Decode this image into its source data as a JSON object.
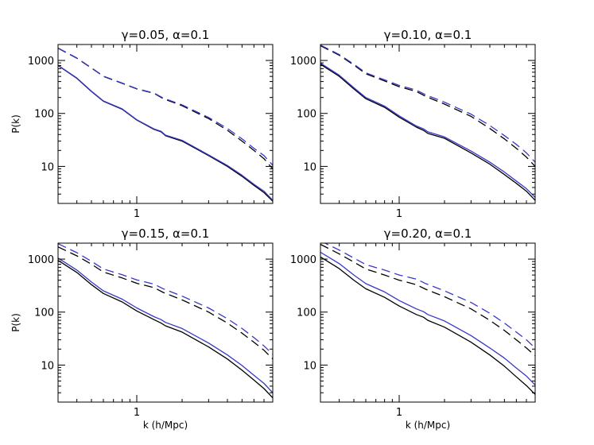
{
  "figure": {
    "x_axis_label": "k (h/Mpc)",
    "y_axis_label": "P(k)"
  },
  "colors": {
    "black": "#000000",
    "blue": "#3838c8"
  },
  "chart_data": [
    {
      "type": "line",
      "title": "γ=0.05, α=0.1",
      "xlabel": "",
      "ylabel": "P(k)",
      "xscale": "log",
      "yscale": "log",
      "xlim": [
        0.3,
        8.0
      ],
      "ylim": [
        2,
        2000
      ],
      "xticklabels": [
        "1"
      ],
      "yticklabels": [
        "10",
        "100",
        "1000"
      ],
      "series": [
        {
          "style": "solid",
          "color": "black",
          "x": [
            0.3,
            0.4,
            0.5,
            0.6,
            0.8,
            1.0,
            1.3,
            1.45,
            1.55,
            2.0,
            3.0,
            4.0,
            5.0,
            6.0,
            7.0,
            8.0
          ],
          "y": [
            800,
            460,
            260,
            170,
            120,
            75,
            50,
            45,
            38,
            30,
            16,
            10,
            6.5,
            4.4,
            3.2,
            2.2
          ]
        },
        {
          "style": "solid",
          "color": "blue",
          "x": [
            0.3,
            0.4,
            0.5,
            0.6,
            0.8,
            1.0,
            1.3,
            1.45,
            1.55,
            2.0,
            3.0,
            4.0,
            5.0,
            6.0,
            7.0,
            8.0
          ],
          "y": [
            810,
            465,
            263,
            172,
            122,
            76,
            51,
            46,
            39,
            31,
            16.5,
            10.4,
            6.8,
            4.6,
            3.4,
            2.3
          ]
        },
        {
          "style": "dashed",
          "color": "black",
          "x": [
            0.3,
            0.4,
            0.5,
            0.6,
            0.8,
            1.0,
            1.3,
            1.5,
            2.0,
            3.0,
            4.0,
            5.0,
            6.0,
            7.0,
            8.0
          ],
          "y": [
            1700,
            1100,
            720,
            500,
            370,
            290,
            240,
            190,
            140,
            80,
            48,
            30,
            20,
            14,
            9
          ]
        },
        {
          "style": "dashed",
          "color": "blue",
          "x": [
            0.3,
            0.4,
            0.5,
            0.6,
            0.8,
            1.0,
            1.3,
            1.5,
            2.0,
            3.0,
            4.0,
            5.0,
            6.0,
            7.0,
            8.0
          ],
          "y": [
            1720,
            1110,
            728,
            505,
            375,
            293,
            243,
            195,
            145,
            84,
            52,
            33,
            22,
            16,
            10.5
          ]
        }
      ]
    },
    {
      "type": "line",
      "title": "γ=0.10, α=0.1",
      "xlabel": "",
      "ylabel": "",
      "xscale": "log",
      "yscale": "log",
      "xlim": [
        0.3,
        8.0
      ],
      "ylim": [
        2,
        2000
      ],
      "xticklabels": [
        "1"
      ],
      "yticklabels": [
        "10",
        "100",
        "1000"
      ],
      "series": [
        {
          "style": "solid",
          "color": "black",
          "x": [
            0.3,
            0.4,
            0.5,
            0.6,
            0.8,
            1.0,
            1.3,
            1.45,
            1.55,
            2.0,
            3.0,
            4.0,
            5.0,
            6.0,
            7.0,
            8.0
          ],
          "y": [
            850,
            500,
            290,
            190,
            130,
            85,
            55,
            48,
            42,
            34,
            18,
            11,
            7,
            4.8,
            3.4,
            2.3
          ]
        },
        {
          "style": "solid",
          "color": "blue",
          "x": [
            0.3,
            0.4,
            0.5,
            0.6,
            0.8,
            1.0,
            1.3,
            1.45,
            1.55,
            2.0,
            3.0,
            4.0,
            5.0,
            6.0,
            7.0,
            8.0
          ],
          "y": [
            890,
            525,
            305,
            200,
            137,
            90,
            58,
            51,
            45,
            36,
            19.5,
            12,
            7.8,
            5.3,
            3.8,
            2.6
          ]
        },
        {
          "style": "dashed",
          "color": "black",
          "x": [
            0.3,
            0.4,
            0.5,
            0.6,
            0.8,
            1.0,
            1.3,
            1.5,
            2.0,
            3.0,
            4.0,
            5.0,
            6.0,
            7.0,
            8.0
          ],
          "y": [
            1900,
            1250,
            820,
            560,
            410,
            320,
            260,
            210,
            150,
            88,
            52,
            33,
            22,
            15,
            10
          ]
        },
        {
          "style": "dashed",
          "color": "blue",
          "x": [
            0.3,
            0.4,
            0.5,
            0.6,
            0.8,
            1.0,
            1.3,
            1.5,
            2.0,
            3.0,
            4.0,
            5.0,
            6.0,
            7.0,
            8.0
          ],
          "y": [
            1950,
            1290,
            850,
            585,
            430,
            338,
            275,
            225,
            163,
            97,
            59,
            38,
            26,
            18,
            12
          ]
        }
      ]
    },
    {
      "type": "line",
      "title": "γ=0.15, α=0.1",
      "xlabel": "k (h/Mpc)",
      "ylabel": "P(k)",
      "xscale": "log",
      "yscale": "log",
      "xlim": [
        0.3,
        8.0
      ],
      "ylim": [
        2,
        2000
      ],
      "xticklabels": [
        "1"
      ],
      "yticklabels": [
        "10",
        "100",
        "1000"
      ],
      "series": [
        {
          "style": "solid",
          "color": "black",
          "x": [
            0.3,
            0.4,
            0.5,
            0.6,
            0.8,
            1.0,
            1.3,
            1.45,
            1.55,
            2.0,
            3.0,
            4.0,
            5.0,
            6.0,
            7.0,
            8.0
          ],
          "y": [
            950,
            560,
            330,
            225,
            155,
            105,
            72,
            62,
            55,
            42,
            22,
            13,
            8,
            5.2,
            3.6,
            2.4
          ]
        },
        {
          "style": "solid",
          "color": "blue",
          "x": [
            0.3,
            0.4,
            0.5,
            0.6,
            0.8,
            1.0,
            1.3,
            1.45,
            1.55,
            2.0,
            3.0,
            4.0,
            5.0,
            6.0,
            7.0,
            8.0
          ],
          "y": [
            1050,
            620,
            370,
            252,
            175,
            120,
            82,
            72,
            64,
            49,
            26,
            15.5,
            9.8,
            6.4,
            4.5,
            3.0
          ]
        },
        {
          "style": "dashed",
          "color": "black",
          "x": [
            0.3,
            0.4,
            0.5,
            0.6,
            0.8,
            1.0,
            1.3,
            1.5,
            2.0,
            3.0,
            4.0,
            5.0,
            6.0,
            7.0,
            8.0
          ],
          "y": [
            1700,
            1150,
            800,
            570,
            440,
            350,
            290,
            235,
            170,
            100,
            62,
            40,
            27,
            19,
            13
          ]
        },
        {
          "style": "dashed",
          "color": "blue",
          "x": [
            0.3,
            0.4,
            0.5,
            0.6,
            0.8,
            1.0,
            1.3,
            1.5,
            2.0,
            3.0,
            4.0,
            5.0,
            6.0,
            7.0,
            8.0
          ],
          "y": [
            1950,
            1320,
            910,
            650,
            505,
            405,
            338,
            275,
            200,
            120,
            75,
            49,
            33,
            23,
            16
          ]
        }
      ]
    },
    {
      "type": "line",
      "title": "γ=0.20, α=0.1",
      "xlabel": "k (h/Mpc)",
      "ylabel": "",
      "xscale": "log",
      "yscale": "log",
      "xlim": [
        0.3,
        8.0
      ],
      "ylim": [
        2,
        2000
      ],
      "xticklabels": [
        "1"
      ],
      "yticklabels": [
        "10",
        "100",
        "1000"
      ],
      "series": [
        {
          "style": "solid",
          "color": "black",
          "x": [
            0.3,
            0.4,
            0.5,
            0.6,
            0.8,
            1.0,
            1.3,
            1.45,
            1.55,
            2.0,
            3.0,
            4.0,
            5.0,
            6.0,
            7.0,
            8.0
          ],
          "y": [
            1100,
            660,
            400,
            275,
            190,
            130,
            90,
            80,
            70,
            52,
            27,
            15.5,
            9.5,
            6,
            4.1,
            2.8
          ]
        },
        {
          "style": "solid",
          "color": "blue",
          "x": [
            0.3,
            0.4,
            0.5,
            0.6,
            0.8,
            1.0,
            1.3,
            1.45,
            1.55,
            2.0,
            3.0,
            4.0,
            5.0,
            6.0,
            7.0,
            8.0
          ],
          "y": [
            1350,
            820,
            500,
            345,
            240,
            165,
            115,
            102,
            90,
            68,
            36,
            21,
            13.5,
            8.8,
            6.2,
            4.2
          ]
        },
        {
          "style": "dashed",
          "color": "black",
          "x": [
            0.3,
            0.4,
            0.5,
            0.6,
            0.8,
            1.0,
            1.3,
            1.5,
            2.0,
            3.0,
            4.0,
            5.0,
            6.0,
            7.0,
            8.0
          ],
          "y": [
            1900,
            1250,
            880,
            650,
            500,
            400,
            330,
            270,
            195,
            115,
            70,
            45,
            30,
            21,
            15
          ]
        },
        {
          "style": "dashed",
          "color": "blue",
          "x": [
            0.3,
            0.4,
            0.5,
            0.6,
            0.8,
            1.0,
            1.3,
            1.5,
            2.0,
            3.0,
            4.0,
            5.0,
            6.0,
            7.0,
            8.0
          ],
          "y": [
            2200,
            1480,
            1050,
            790,
            620,
            500,
            420,
            345,
            252,
            152,
            95,
            62,
            42,
            30,
            21
          ]
        }
      ]
    }
  ]
}
